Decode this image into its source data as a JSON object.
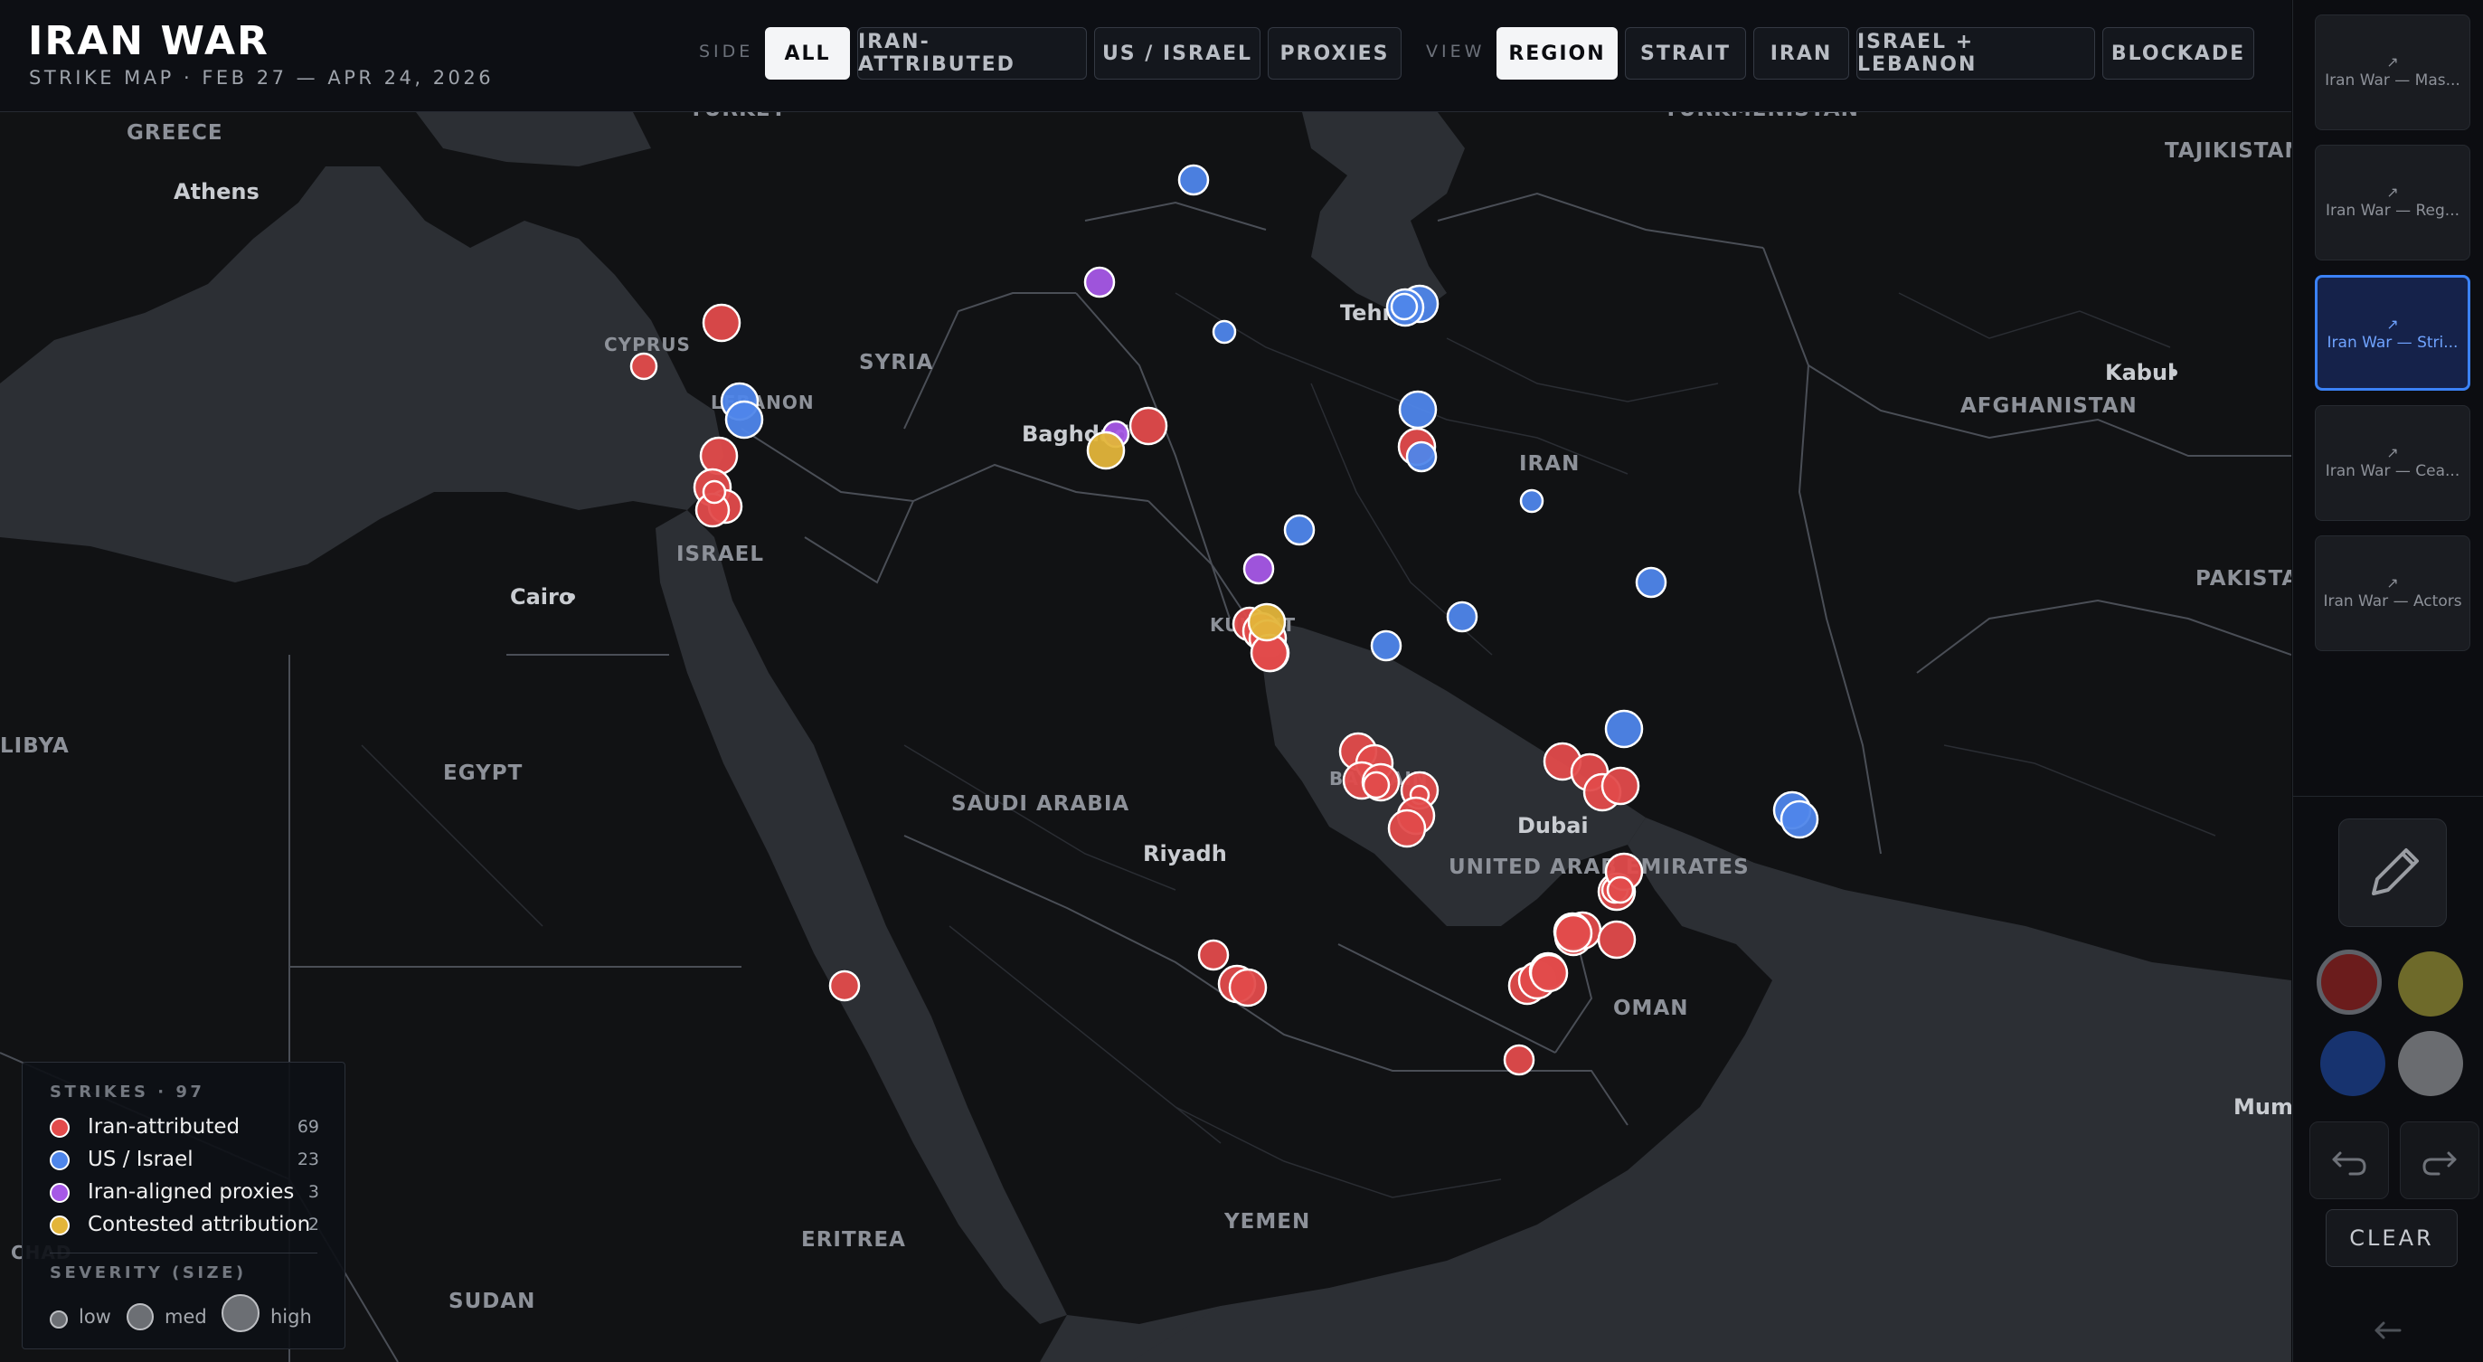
{
  "header": {
    "title": "IRAN WAR",
    "subtitle": "STRIKE MAP · FEB 27 — APR 24, 2026",
    "side_label": "SIDE",
    "side_filters": [
      {
        "label": "ALL",
        "active": true
      },
      {
        "label": "IRAN-ATTRIBUTED",
        "active": false
      },
      {
        "label": "US / ISRAEL",
        "active": false
      },
      {
        "label": "PROXIES",
        "active": false
      }
    ],
    "view_label": "VIEW",
    "view_filters": [
      {
        "label": "REGION",
        "active": true
      },
      {
        "label": "STRAIT",
        "active": false
      },
      {
        "label": "IRAN",
        "active": false
      },
      {
        "label": "ISRAEL + LEBANON",
        "active": false
      },
      {
        "label": "BLOCKADE",
        "active": false
      }
    ]
  },
  "map": {
    "country_labels": [
      "GREECE",
      "TURKEY",
      "TURKMENISTAN",
      "TAJIKISTAN",
      "CYPRUS",
      "SYRIA",
      "LEBANON",
      "ISRAEL",
      "IRAN",
      "AFGHANISTAN",
      "PAKISTAN",
      "EGYPT",
      "SAUDI ARABIA",
      "UNITED ARAB EMIRATES",
      "OMAN",
      "YEMEN",
      "ERITREA",
      "SUDAN",
      "LIBYA",
      "CHAD",
      "KUWAIT",
      "BAHRAIN"
    ],
    "city_labels": [
      "Athens",
      "Cairo",
      "Baghdad",
      "Tehran",
      "Kabul",
      "Riyadh",
      "Dubai",
      "Mumbai"
    ],
    "colors": {
      "iran": "#e24b4b",
      "us_israel": "#4f86ea",
      "proxies": "#a659e6",
      "contested": "#e3b53a",
      "land": "#111214",
      "sea": "#2c2f34"
    }
  },
  "legend": {
    "title": "STRIKES · 97",
    "items": [
      {
        "label": "Iran-attributed",
        "count": "69",
        "color": "#e24b4b"
      },
      {
        "label": "US / Israel",
        "count": "23",
        "color": "#4f86ea"
      },
      {
        "label": "Iran-aligned proxies",
        "count": "3",
        "color": "#a659e6"
      },
      {
        "label": "Contested attribution",
        "count": "2",
        "color": "#e3b53a"
      }
    ],
    "severity_title": "SEVERITY (SIZE)",
    "severity": [
      "low",
      "med",
      "high"
    ]
  },
  "sidebar": {
    "thumbnails": [
      {
        "label": "Iran War — Mas...",
        "active": false
      },
      {
        "label": "Iran War — Reg...",
        "active": false
      },
      {
        "label": "Iran War — Stri...",
        "active": true
      },
      {
        "label": "Iran War — Cea...",
        "active": false
      },
      {
        "label": "Iran War — Actors",
        "active": false
      }
    ],
    "thumb_arrow": "↗",
    "swatches": [
      "#6b1c1c",
      "#6e6a2a",
      "#17336f",
      "#6a6c70"
    ],
    "clear_label": "CLEAR"
  }
}
